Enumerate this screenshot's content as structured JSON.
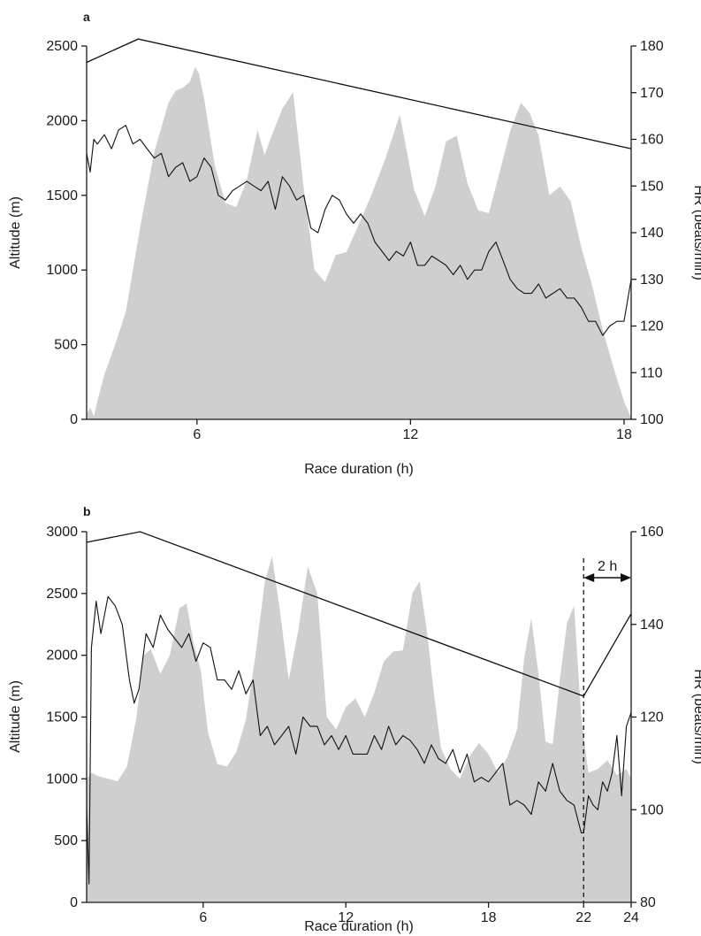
{
  "chart_data": [
    {
      "panel": "a",
      "type": "area",
      "xlabel": "Race duration (h)",
      "ylabel": "Altitude (m)",
      "y2label": "HR (beats/min)",
      "xlim": [
        2.9,
        18.2
      ],
      "ylim": [
        0,
        2500
      ],
      "y2lim": [
        100,
        180
      ],
      "x_ticks": [
        6,
        12,
        18
      ],
      "y_ticks": [
        0,
        500,
        1000,
        1500,
        2000,
        2500
      ],
      "y2_ticks": [
        100,
        110,
        120,
        130,
        140,
        150,
        160,
        170,
        180
      ],
      "series": [
        {
          "kind": "altitude-area",
          "axis": "left",
          "color": "#cfcfcf",
          "x": [
            2.9,
            3.0,
            3.1,
            3.2,
            3.4,
            3.7,
            4.0,
            4.4,
            4.8,
            5.2,
            5.4,
            5.6,
            5.8,
            5.95,
            6.05,
            6.2,
            6.5,
            6.8,
            7.1,
            7.4,
            7.7,
            7.9,
            8.1,
            8.4,
            8.7,
            9.0,
            9.3,
            9.6,
            9.9,
            10.2,
            10.5,
            10.9,
            11.3,
            11.7,
            11.9,
            12.1,
            12.4,
            12.7,
            13.0,
            13.3,
            13.6,
            13.9,
            14.2,
            14.5,
            14.8,
            15.1,
            15.35,
            15.6,
            15.9,
            16.2,
            16.5,
            16.8,
            17.1,
            17.4,
            17.7,
            18.0,
            18.2
          ],
          "values": [
            30,
            80,
            20,
            120,
            300,
            500,
            720,
            1280,
            1790,
            2120,
            2200,
            2220,
            2260,
            2360,
            2320,
            2150,
            1700,
            1450,
            1420,
            1600,
            1940,
            1770,
            1900,
            2080,
            2190,
            1550,
            1000,
            920,
            1100,
            1120,
            1280,
            1500,
            1750,
            2040,
            1790,
            1540,
            1360,
            1560,
            1860,
            1900,
            1580,
            1400,
            1380,
            1650,
            1930,
            2120,
            2050,
            1900,
            1500,
            1560,
            1460,
            1150,
            900,
            600,
            350,
            120,
            10
          ]
        },
        {
          "kind": "heart-rate",
          "axis": "right",
          "color": "#1c1716",
          "x": [
            2.9,
            3.0,
            3.1,
            3.2,
            3.4,
            3.6,
            3.8,
            4.0,
            4.2,
            4.4,
            4.6,
            4.8,
            5.0,
            5.2,
            5.4,
            5.6,
            5.8,
            6.0,
            6.2,
            6.4,
            6.6,
            6.8,
            7.0,
            7.2,
            7.4,
            7.6,
            7.8,
            8.0,
            8.2,
            8.4,
            8.6,
            8.8,
            9.0,
            9.2,
            9.4,
            9.6,
            9.8,
            10.0,
            10.2,
            10.4,
            10.6,
            10.8,
            11.0,
            11.2,
            11.4,
            11.6,
            11.8,
            12.0,
            12.2,
            12.4,
            12.6,
            12.8,
            13.0,
            13.2,
            13.4,
            13.6,
            13.8,
            14.0,
            14.2,
            14.4,
            14.6,
            14.8,
            15.0,
            15.2,
            15.4,
            15.6,
            15.8,
            16.0,
            16.2,
            16.4,
            16.6,
            16.8,
            17.0,
            17.2,
            17.4,
            17.6,
            17.8,
            18.0,
            18.2
          ],
          "values": [
            157,
            153,
            160,
            159,
            161,
            158,
            162,
            163,
            159,
            160,
            158,
            156,
            157,
            152,
            154,
            155,
            151,
            152,
            156,
            154,
            148,
            147,
            149,
            150,
            151,
            150,
            149,
            151,
            145,
            152,
            150,
            147,
            148,
            141,
            140,
            145,
            148,
            147,
            144,
            142,
            144,
            142,
            138,
            136,
            134,
            136,
            135,
            138,
            133,
            133,
            135,
            134,
            133,
            131,
            133,
            130,
            132,
            132,
            136,
            138,
            134,
            130,
            128,
            127,
            127,
            129,
            126,
            127,
            128,
            126,
            126,
            124,
            121,
            121,
            118,
            120,
            121,
            121,
            130
          ]
        },
        {
          "kind": "hr-trend",
          "axis": "right",
          "color": "#111111",
          "x": [
            2.9,
            4.35,
            18.2
          ],
          "values": [
            176.5,
            181.5,
            158
          ]
        }
      ]
    },
    {
      "panel": "b",
      "type": "area",
      "xlabel": "Race duration (h)",
      "ylabel": "Altitude (m)",
      "y2label": "HR (beats/min)",
      "xlim": [
        1.1,
        24
      ],
      "ylim": [
        0,
        3000
      ],
      "y2lim": [
        80,
        160
      ],
      "x_ticks": [
        6,
        12,
        18,
        22,
        24
      ],
      "y_ticks": [
        0,
        500,
        1000,
        1500,
        2000,
        2500,
        3000
      ],
      "y2_ticks": [
        80,
        100,
        120,
        140,
        160
      ],
      "annotation": {
        "label": "2 h",
        "from_x": 22,
        "to_x": 24
      },
      "series": [
        {
          "kind": "altitude-area",
          "axis": "left",
          "color": "#cfcfcf",
          "x": [
            1.1,
            1.3,
            1.6,
            2.0,
            2.4,
            2.8,
            3.2,
            3.5,
            3.8,
            4.2,
            4.6,
            5.0,
            5.3,
            5.6,
            5.9,
            6.2,
            6.6,
            7.0,
            7.4,
            7.8,
            8.2,
            8.6,
            8.9,
            9.2,
            9.6,
            10.0,
            10.4,
            10.8,
            11.2,
            11.6,
            12.0,
            12.4,
            12.8,
            13.2,
            13.6,
            14.0,
            14.4,
            14.8,
            15.1,
            15.4,
            15.7,
            16.0,
            16.4,
            16.8,
            17.2,
            17.6,
            18.0,
            18.4,
            18.8,
            19.2,
            19.5,
            19.8,
            20.1,
            20.4,
            20.7,
            21.0,
            21.3,
            21.6,
            21.9,
            22.2,
            22.6,
            23.0,
            23.4,
            23.8,
            24.0
          ],
          "values": [
            1000,
            1050,
            1020,
            1000,
            980,
            1100,
            1500,
            2000,
            2050,
            1850,
            2000,
            2380,
            2420,
            2100,
            1880,
            1380,
            1120,
            1100,
            1220,
            1480,
            2000,
            2600,
            2800,
            2400,
            1800,
            2200,
            2720,
            2500,
            1500,
            1400,
            1580,
            1650,
            1500,
            1700,
            1950,
            2030,
            2040,
            2500,
            2600,
            2210,
            1700,
            1250,
            1080,
            1000,
            1180,
            1290,
            1200,
            1050,
            1180,
            1400,
            1980,
            2300,
            1850,
            1300,
            1280,
            1800,
            2260,
            2400,
            1500,
            1050,
            1080,
            1150,
            1030,
            1080,
            1000
          ]
        },
        {
          "kind": "heart-rate",
          "axis": "right",
          "color": "#1c1716",
          "x": [
            1.1,
            1.2,
            1.3,
            1.5,
            1.7,
            2.0,
            2.3,
            2.6,
            2.9,
            3.1,
            3.3,
            3.6,
            3.9,
            4.2,
            4.5,
            4.8,
            5.1,
            5.4,
            5.7,
            6.0,
            6.3,
            6.6,
            6.9,
            7.2,
            7.5,
            7.8,
            8.1,
            8.4,
            8.7,
            9.0,
            9.3,
            9.6,
            9.9,
            10.2,
            10.5,
            10.8,
            11.1,
            11.4,
            11.7,
            12.0,
            12.3,
            12.6,
            12.9,
            13.2,
            13.5,
            13.8,
            14.1,
            14.4,
            14.7,
            15.0,
            15.3,
            15.6,
            15.9,
            16.2,
            16.5,
            16.8,
            17.1,
            17.4,
            17.7,
            18.0,
            18.3,
            18.6,
            18.9,
            19.2,
            19.5,
            19.8,
            20.1,
            20.4,
            20.7,
            21.0,
            21.3,
            21.6,
            21.9,
            22.0,
            22.2,
            22.4,
            22.6,
            22.8,
            23.0,
            23.2,
            23.4,
            23.6,
            23.8,
            24.0
          ],
          "values": [
            100,
            84,
            135,
            145,
            138,
            146,
            144,
            140,
            128,
            123,
            126,
            138,
            135,
            142,
            139,
            137,
            135,
            138,
            132,
            136,
            135,
            128,
            128,
            126,
            130,
            125,
            128,
            116,
            118,
            114,
            116,
            118,
            112,
            120,
            118,
            118,
            114,
            116,
            113,
            116,
            112,
            112,
            112,
            116,
            113,
            118,
            114,
            116,
            115,
            113,
            110,
            114,
            111,
            110,
            113,
            108,
            112,
            106,
            107,
            106,
            108,
            110,
            101,
            102,
            101,
            99,
            106,
            104,
            110,
            104,
            102,
            101,
            95,
            95,
            103,
            101,
            100,
            106,
            104,
            108,
            116,
            103,
            118,
            121
          ]
        },
        {
          "kind": "hr-trend",
          "axis": "right",
          "color": "#111111",
          "x": [
            1.1,
            3.35,
            22.0,
            24.0
          ],
          "values": [
            157.7,
            160,
            124.5,
            142.3
          ]
        }
      ]
    }
  ]
}
